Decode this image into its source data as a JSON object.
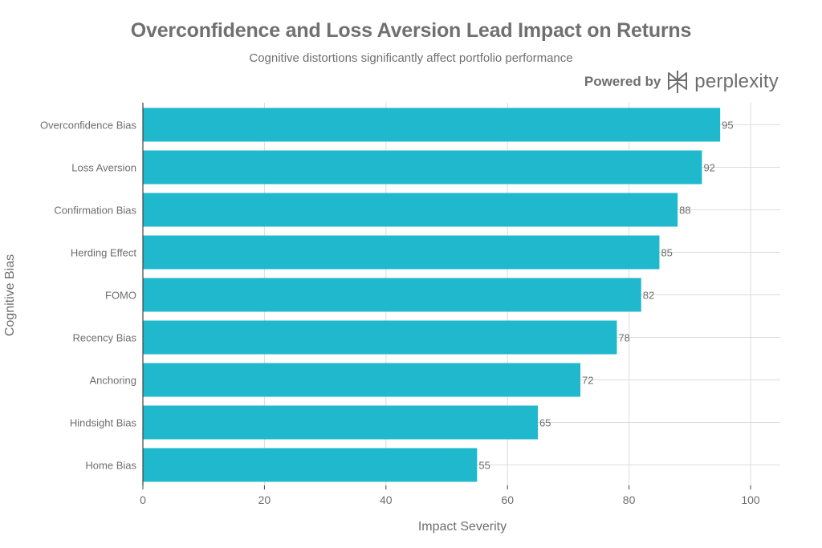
{
  "chart_data": {
    "type": "bar",
    "orientation": "horizontal",
    "title": "Overconfidence and Loss Aversion Lead Impact on Returns",
    "subtitle": "Cognitive distortions significantly affect portfolio performance",
    "xlabel": "Impact Severity",
    "ylabel": "Cognitive Bias",
    "xlim": [
      0,
      105
    ],
    "xticks": [
      0,
      20,
      40,
      60,
      80,
      100
    ],
    "grid": true,
    "bar_color": "#1FB8CD",
    "categories": [
      "Overconfidence Bias",
      "Loss Aversion",
      "Confirmation Bias",
      "Herding Effect",
      "FOMO",
      "Recency Bias",
      "Anchoring",
      "Hindsight Bias",
      "Home Bias"
    ],
    "values": [
      95,
      92,
      88,
      85,
      82,
      78,
      72,
      65,
      55
    ]
  },
  "branding": {
    "powered_by": "Powered by",
    "name": "perplexity",
    "icon": "perplexity-logo-icon"
  }
}
